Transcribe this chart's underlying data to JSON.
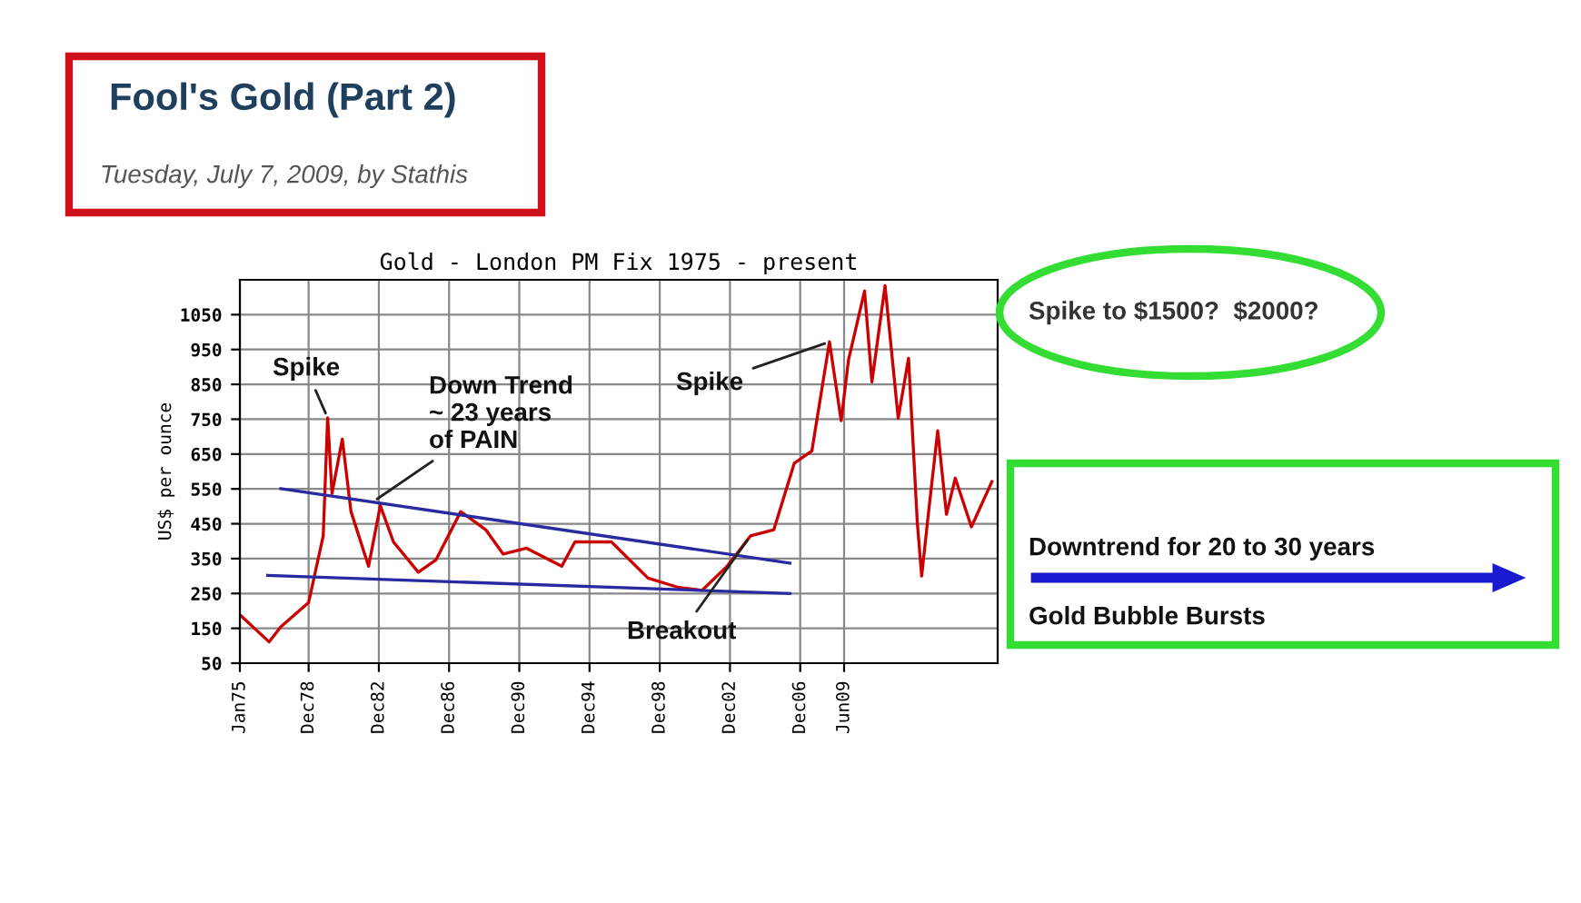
{
  "chart_data": {
    "type": "line",
    "title": "Gold - London PM Fix 1975 - present",
    "ylabel": "US$ per ounce",
    "series": [
      {
        "color": "#cc0000",
        "x": [
          "1975-01",
          "1976-09",
          "1977-05",
          "1978-12",
          "1979-10",
          "1980-01",
          "1980-04",
          "1980-11",
          "1981-05",
          "1982-05",
          "1983-01",
          "1983-10",
          "1985-03",
          "1986-03",
          "1987-08",
          "1989-01",
          "1990-01",
          "1991-05",
          "1993-05",
          "1994-02",
          "1996-03",
          "1998-04",
          "2000-01",
          "2001-05",
          "2002-10",
          "2004-02",
          "2005-06",
          "2006-08",
          "2007-08",
          "2008-08",
          "2009-04",
          "2009-09",
          "2010-08",
          "2011-01",
          "2011-10",
          "2012-07",
          "2013-02",
          "2013-08",
          "2013-11",
          "2014-04",
          "2014-10",
          "2015-04",
          "2015-10",
          "2016-09",
          "2017-11"
        ],
        "values": [
          189,
          111,
          154,
          224,
          415,
          754,
          537,
          693,
          485,
          328,
          502,
          398,
          311,
          346,
          485,
          433,
          363,
          380,
          328,
          398,
          398,
          294,
          267,
          259,
          328,
          415,
          433,
          624,
          659,
          972,
          746,
          920,
          1118,
          857,
          1133,
          753,
          925,
          456,
          300,
          493,
          717,
          477,
          581,
          441,
          571
        ]
      },
      {
        "type": "line",
        "color": "#2a2aa0",
        "x": [
          "1977-05",
          "2006-05"
        ],
        "values": [
          551,
          337
        ]
      },
      {
        "type": "line",
        "color": "#2a2aa0",
        "x": [
          "1976-08",
          "2006-05"
        ],
        "values": [
          302,
          250
        ]
      }
    ],
    "xlim": [
      "1975-01",
      "2018-03"
    ],
    "ylim": [
      50,
      1150
    ],
    "xticks": [
      {
        "value": "1975-01",
        "label": "Jan75"
      },
      {
        "value": "1978-12",
        "label": "Dec78"
      },
      {
        "value": "1982-12",
        "label": "Dec82"
      },
      {
        "value": "1986-12",
        "label": "Dec86"
      },
      {
        "value": "1990-12",
        "label": "Dec90"
      },
      {
        "value": "1994-12",
        "label": "Dec94"
      },
      {
        "value": "1998-12",
        "label": "Dec98"
      },
      {
        "value": "2002-12",
        "label": "Dec02"
      },
      {
        "value": "2006-12",
        "label": "Dec06"
      },
      {
        "value": "2009-06",
        "label": "Jun09"
      }
    ],
    "yticks": [
      50,
      150,
      250,
      350,
      450,
      550,
      650,
      750,
      850,
      950,
      1050
    ],
    "grid": true,
    "annotations": [
      "Fool's Gold (Part 2)",
      "Tuesday, July 7, 2009, by Stathis",
      {
        "text": "Spike",
        "x": "1980-01",
        "y": 754
      },
      {
        "text": "Down Trend\n~ 23 years\nof PAIN",
        "x": "1982-08",
        "y": 513
      },
      {
        "text": "Spike",
        "x": "2008-08",
        "y": 972
      },
      {
        "text": "Breakout",
        "x": "2004-02",
        "y": 415
      },
      "Spike to $1500?  $2000?",
      "Downtrend for 20 to 30 years",
      "Gold Bubble Bursts"
    ]
  }
}
